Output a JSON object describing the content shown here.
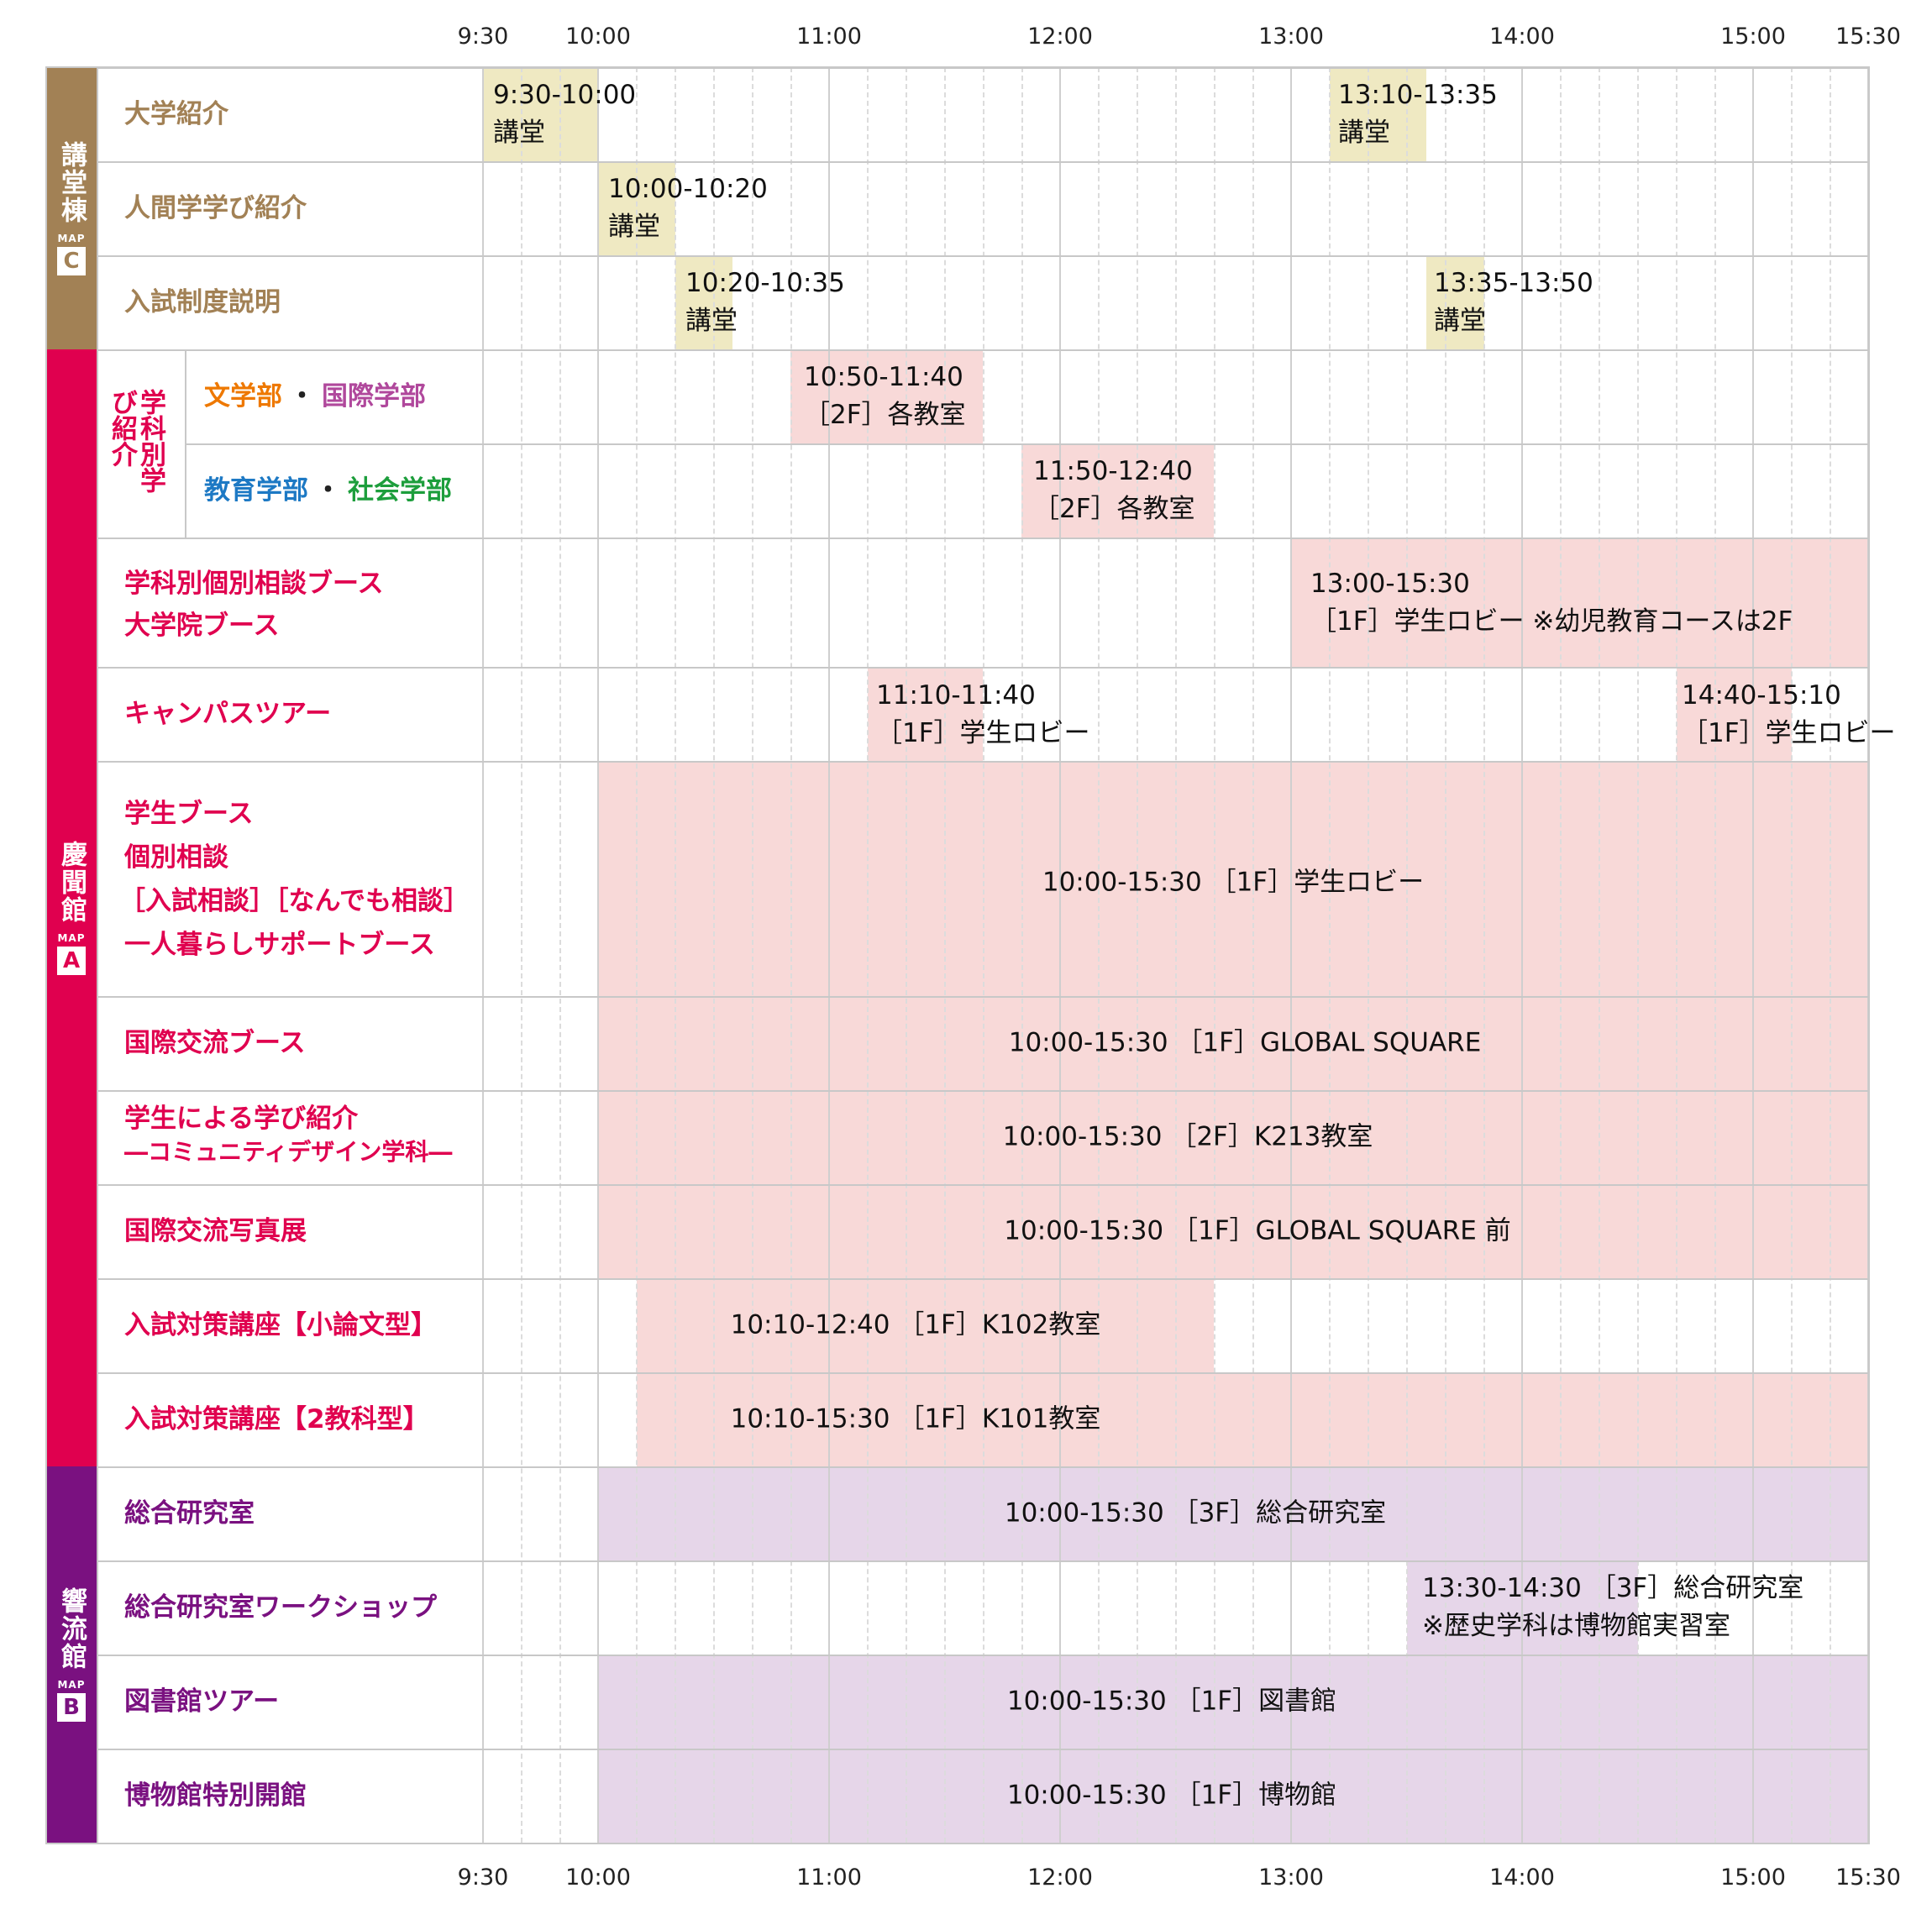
{
  "time_ticks": [
    "9:30",
    "10:00",
    "11:00",
    "12:00",
    "13:00",
    "14:00",
    "15:00",
    "15:30"
  ],
  "buildings": [
    {
      "name": "講堂棟",
      "map_label": "MAP",
      "map_letter": "C",
      "color": "#a28155"
    },
    {
      "name": "慶聞館",
      "map_label": "MAP",
      "map_letter": "A",
      "color": "#e0004f"
    },
    {
      "name": "響流館",
      "map_label": "MAP",
      "map_letter": "B",
      "color": "#7a1180"
    }
  ],
  "group_labels": {
    "gakka_betsu": "学科別学び紹介"
  },
  "rows": [
    {
      "label": "大学紹介"
    },
    {
      "label": "人間学学び紹介"
    },
    {
      "label": "入試制度説明"
    },
    {
      "label_parts": [
        "文学部",
        "・",
        "国際学部"
      ]
    },
    {
      "label_parts": [
        "教育学部",
        "・",
        "社会学部"
      ]
    },
    {
      "label_lines": [
        "学科別個別相談ブース",
        "大学院ブース"
      ]
    },
    {
      "label": "キャンパスツアー"
    },
    {
      "label_lines": [
        "学生ブース",
        "個別相談",
        "［入試相談］［なんでも相談］",
        "一人暮らしサポートブース"
      ]
    },
    {
      "label": "国際交流ブース"
    },
    {
      "label_lines": [
        "学生による学び紹介",
        "―コミュニティデザイン学科―"
      ]
    },
    {
      "label": "国際交流写真展"
    },
    {
      "label": "入試対策講座【小論文型】"
    },
    {
      "label": "入試対策講座【2教科型】"
    },
    {
      "label": "総合研究室"
    },
    {
      "label": "総合研究室ワークショップ"
    },
    {
      "label": "図書館ツアー"
    },
    {
      "label": "博物館特別開館"
    }
  ],
  "events": [
    {
      "lines": [
        "9:30-10:00",
        "講堂"
      ]
    },
    {
      "lines": [
        "13:10-13:35",
        "講堂"
      ]
    },
    {
      "lines": [
        "10:00-10:20",
        "講堂"
      ]
    },
    {
      "lines": [
        "10:20-10:35",
        "講堂"
      ]
    },
    {
      "lines": [
        "13:35-13:50",
        "講堂"
      ]
    },
    {
      "lines": [
        "10:50-11:40",
        "［2F］各教室"
      ]
    },
    {
      "lines": [
        "11:50-12:40",
        "［2F］各教室"
      ]
    },
    {
      "lines": [
        "13:00-15:30",
        "［1F］学生ロビー ※幼児教育コースは2F"
      ]
    },
    {
      "lines": [
        "11:10-11:40",
        "［1F］学生ロビー"
      ]
    },
    {
      "lines": [
        "14:40-15:10",
        "［1F］学生ロビー"
      ]
    },
    {
      "lines": [
        "10:00-15:30 ［1F］学生ロビー"
      ]
    },
    {
      "lines": [
        "10:00-15:30 ［1F］GLOBAL SQUARE"
      ]
    },
    {
      "lines": [
        "10:00-15:30 ［2F］K213教室"
      ]
    },
    {
      "lines": [
        "10:00-15:30 ［1F］GLOBAL SQUARE 前"
      ]
    },
    {
      "lines": [
        "10:10-12:40 ［1F］K102教室"
      ]
    },
    {
      "lines": [
        "10:10-15:30 ［1F］K101教室"
      ]
    },
    {
      "lines": [
        "10:00-15:30 ［3F］総合研究室"
      ]
    },
    {
      "lines": [
        "13:30-14:30 ［3F］総合研究室",
        "※歴史学科は博物館実習室"
      ]
    },
    {
      "lines": [
        "10:00-15:30 ［1F］図書館"
      ]
    },
    {
      "lines": [
        "10:00-15:30 ［1F］博物館"
      ]
    }
  ]
}
